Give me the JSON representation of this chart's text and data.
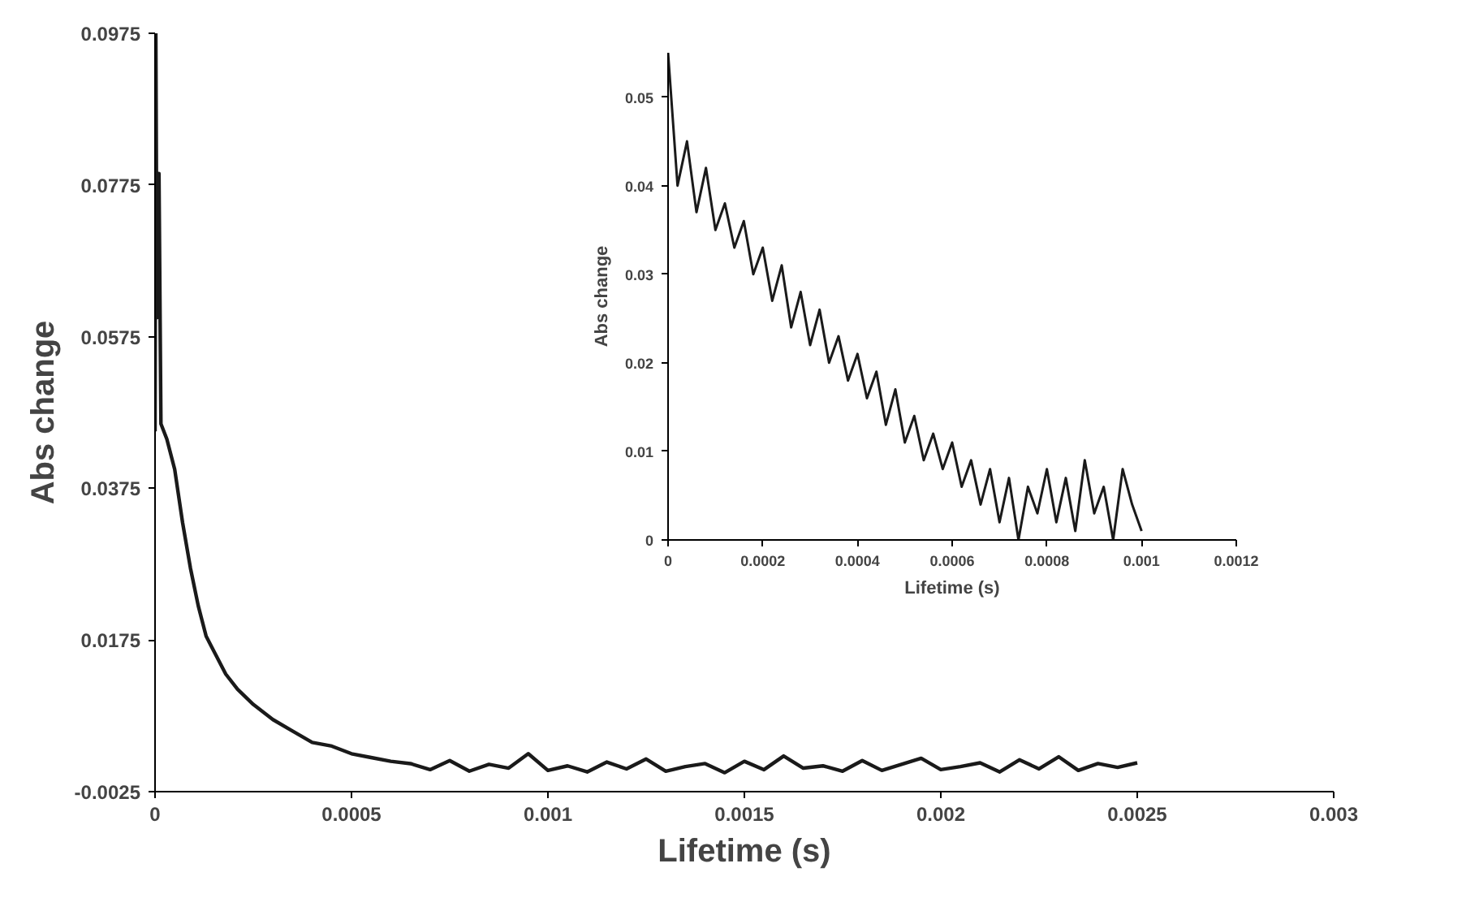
{
  "chart_data": [
    {
      "type": "line",
      "xlabel": "Lifetime (s)",
      "ylabel": "Abs change",
      "xlim": [
        0,
        0.003
      ],
      "ylim": [
        -0.0025,
        0.0975
      ],
      "xticks": [
        0,
        0.0005,
        0.001,
        0.0015,
        0.002,
        0.0025,
        0.003
      ],
      "yticks": [
        -0.0025,
        0.0175,
        0.0375,
        0.0575,
        0.0775,
        0.0975
      ],
      "grid": false,
      "marker": "none",
      "line_style": "solid",
      "series": [
        {
          "color": "#1a1a1a",
          "x": [
            0,
            2e-06,
            5e-06,
            1e-05,
            1.5e-05,
            3e-05,
            5e-05,
            7e-05,
            9e-05,
            0.00011,
            0.00013,
            0.00015,
            0.00018,
            0.00021,
            0.00025,
            0.0003,
            0.00035,
            0.0004,
            0.00045,
            0.0005,
            0.00055,
            0.0006,
            0.00065,
            0.0007,
            0.00075,
            0.0008,
            0.00085,
            0.0009,
            0.00095,
            0.001,
            0.00105,
            0.0011,
            0.00115,
            0.0012,
            0.00125,
            0.0013,
            0.00135,
            0.0014,
            0.00145,
            0.0015,
            0.00155,
            0.0016,
            0.00165,
            0.0017,
            0.00175,
            0.0018,
            0.00185,
            0.0019,
            0.00195,
            0.002,
            0.00205,
            0.0021,
            0.00215,
            0.0022,
            0.00225,
            0.0023,
            0.00235,
            0.0024,
            0.00245,
            0.0025
          ],
          "values": [
            0.045,
            0.0975,
            0.06,
            0.079,
            0.046,
            0.044,
            0.04,
            0.033,
            0.027,
            0.022,
            0.018,
            0.016,
            0.013,
            0.011,
            0.009,
            0.007,
            0.0055,
            0.004,
            0.0035,
            0.0025,
            0.002,
            0.0015,
            0.0012,
            0.0004,
            0.0016,
            0.0002,
            0.0011,
            0.0006,
            0.0025,
            0.0003,
            0.0009,
            0.0001,
            0.0014,
            0.0005,
            0.0018,
            0.0002,
            0.0008,
            0.0012,
            0.0,
            0.0015,
            0.0004,
            0.0022,
            0.0006,
            0.0009,
            0.0002,
            0.0016,
            0.0003,
            0.0011,
            0.0019,
            0.0004,
            0.0008,
            0.0013,
            0.0001,
            0.0017,
            0.0005,
            0.0021,
            0.0003,
            0.0012,
            0.0007,
            0.0013
          ]
        }
      ]
    },
    {
      "type": "line",
      "xlabel": "Lifetime (s)",
      "ylabel": "Abs change",
      "xlim": [
        0,
        0.0012
      ],
      "ylim": [
        0,
        0.055
      ],
      "xticks": [
        0,
        0.0002,
        0.0004,
        0.0006,
        0.0008,
        0.001,
        0.0012
      ],
      "yticks": [
        0,
        0.01,
        0.02,
        0.03,
        0.04,
        0.05
      ],
      "grid": false,
      "marker": "none",
      "line_style": "solid",
      "series": [
        {
          "color": "#1a1a1a",
          "x": [
            0,
            2e-05,
            4e-05,
            6e-05,
            8e-05,
            0.0001,
            0.00012,
            0.00014,
            0.00016,
            0.00018,
            0.0002,
            0.00022,
            0.00024,
            0.00026,
            0.00028,
            0.0003,
            0.00032,
            0.00034,
            0.00036,
            0.00038,
            0.0004,
            0.00042,
            0.00044,
            0.00046,
            0.00048,
            0.0005,
            0.00052,
            0.00054,
            0.00056,
            0.00058,
            0.0006,
            0.00062,
            0.00064,
            0.00066,
            0.00068,
            0.0007,
            0.00072,
            0.00074,
            0.00076,
            0.00078,
            0.0008,
            0.00082,
            0.00084,
            0.00086,
            0.00088,
            0.0009,
            0.00092,
            0.00094,
            0.00096,
            0.00098,
            0.001
          ],
          "values": [
            0.055,
            0.04,
            0.045,
            0.037,
            0.042,
            0.035,
            0.038,
            0.033,
            0.036,
            0.03,
            0.033,
            0.027,
            0.031,
            0.024,
            0.028,
            0.022,
            0.026,
            0.02,
            0.023,
            0.018,
            0.021,
            0.016,
            0.019,
            0.013,
            0.017,
            0.011,
            0.014,
            0.009,
            0.012,
            0.008,
            0.011,
            0.006,
            0.009,
            0.004,
            0.008,
            0.002,
            0.007,
            0.0,
            0.006,
            0.003,
            0.008,
            0.002,
            0.007,
            0.001,
            0.009,
            0.003,
            0.006,
            0.0,
            0.008,
            0.004,
            0.001
          ]
        }
      ]
    }
  ]
}
